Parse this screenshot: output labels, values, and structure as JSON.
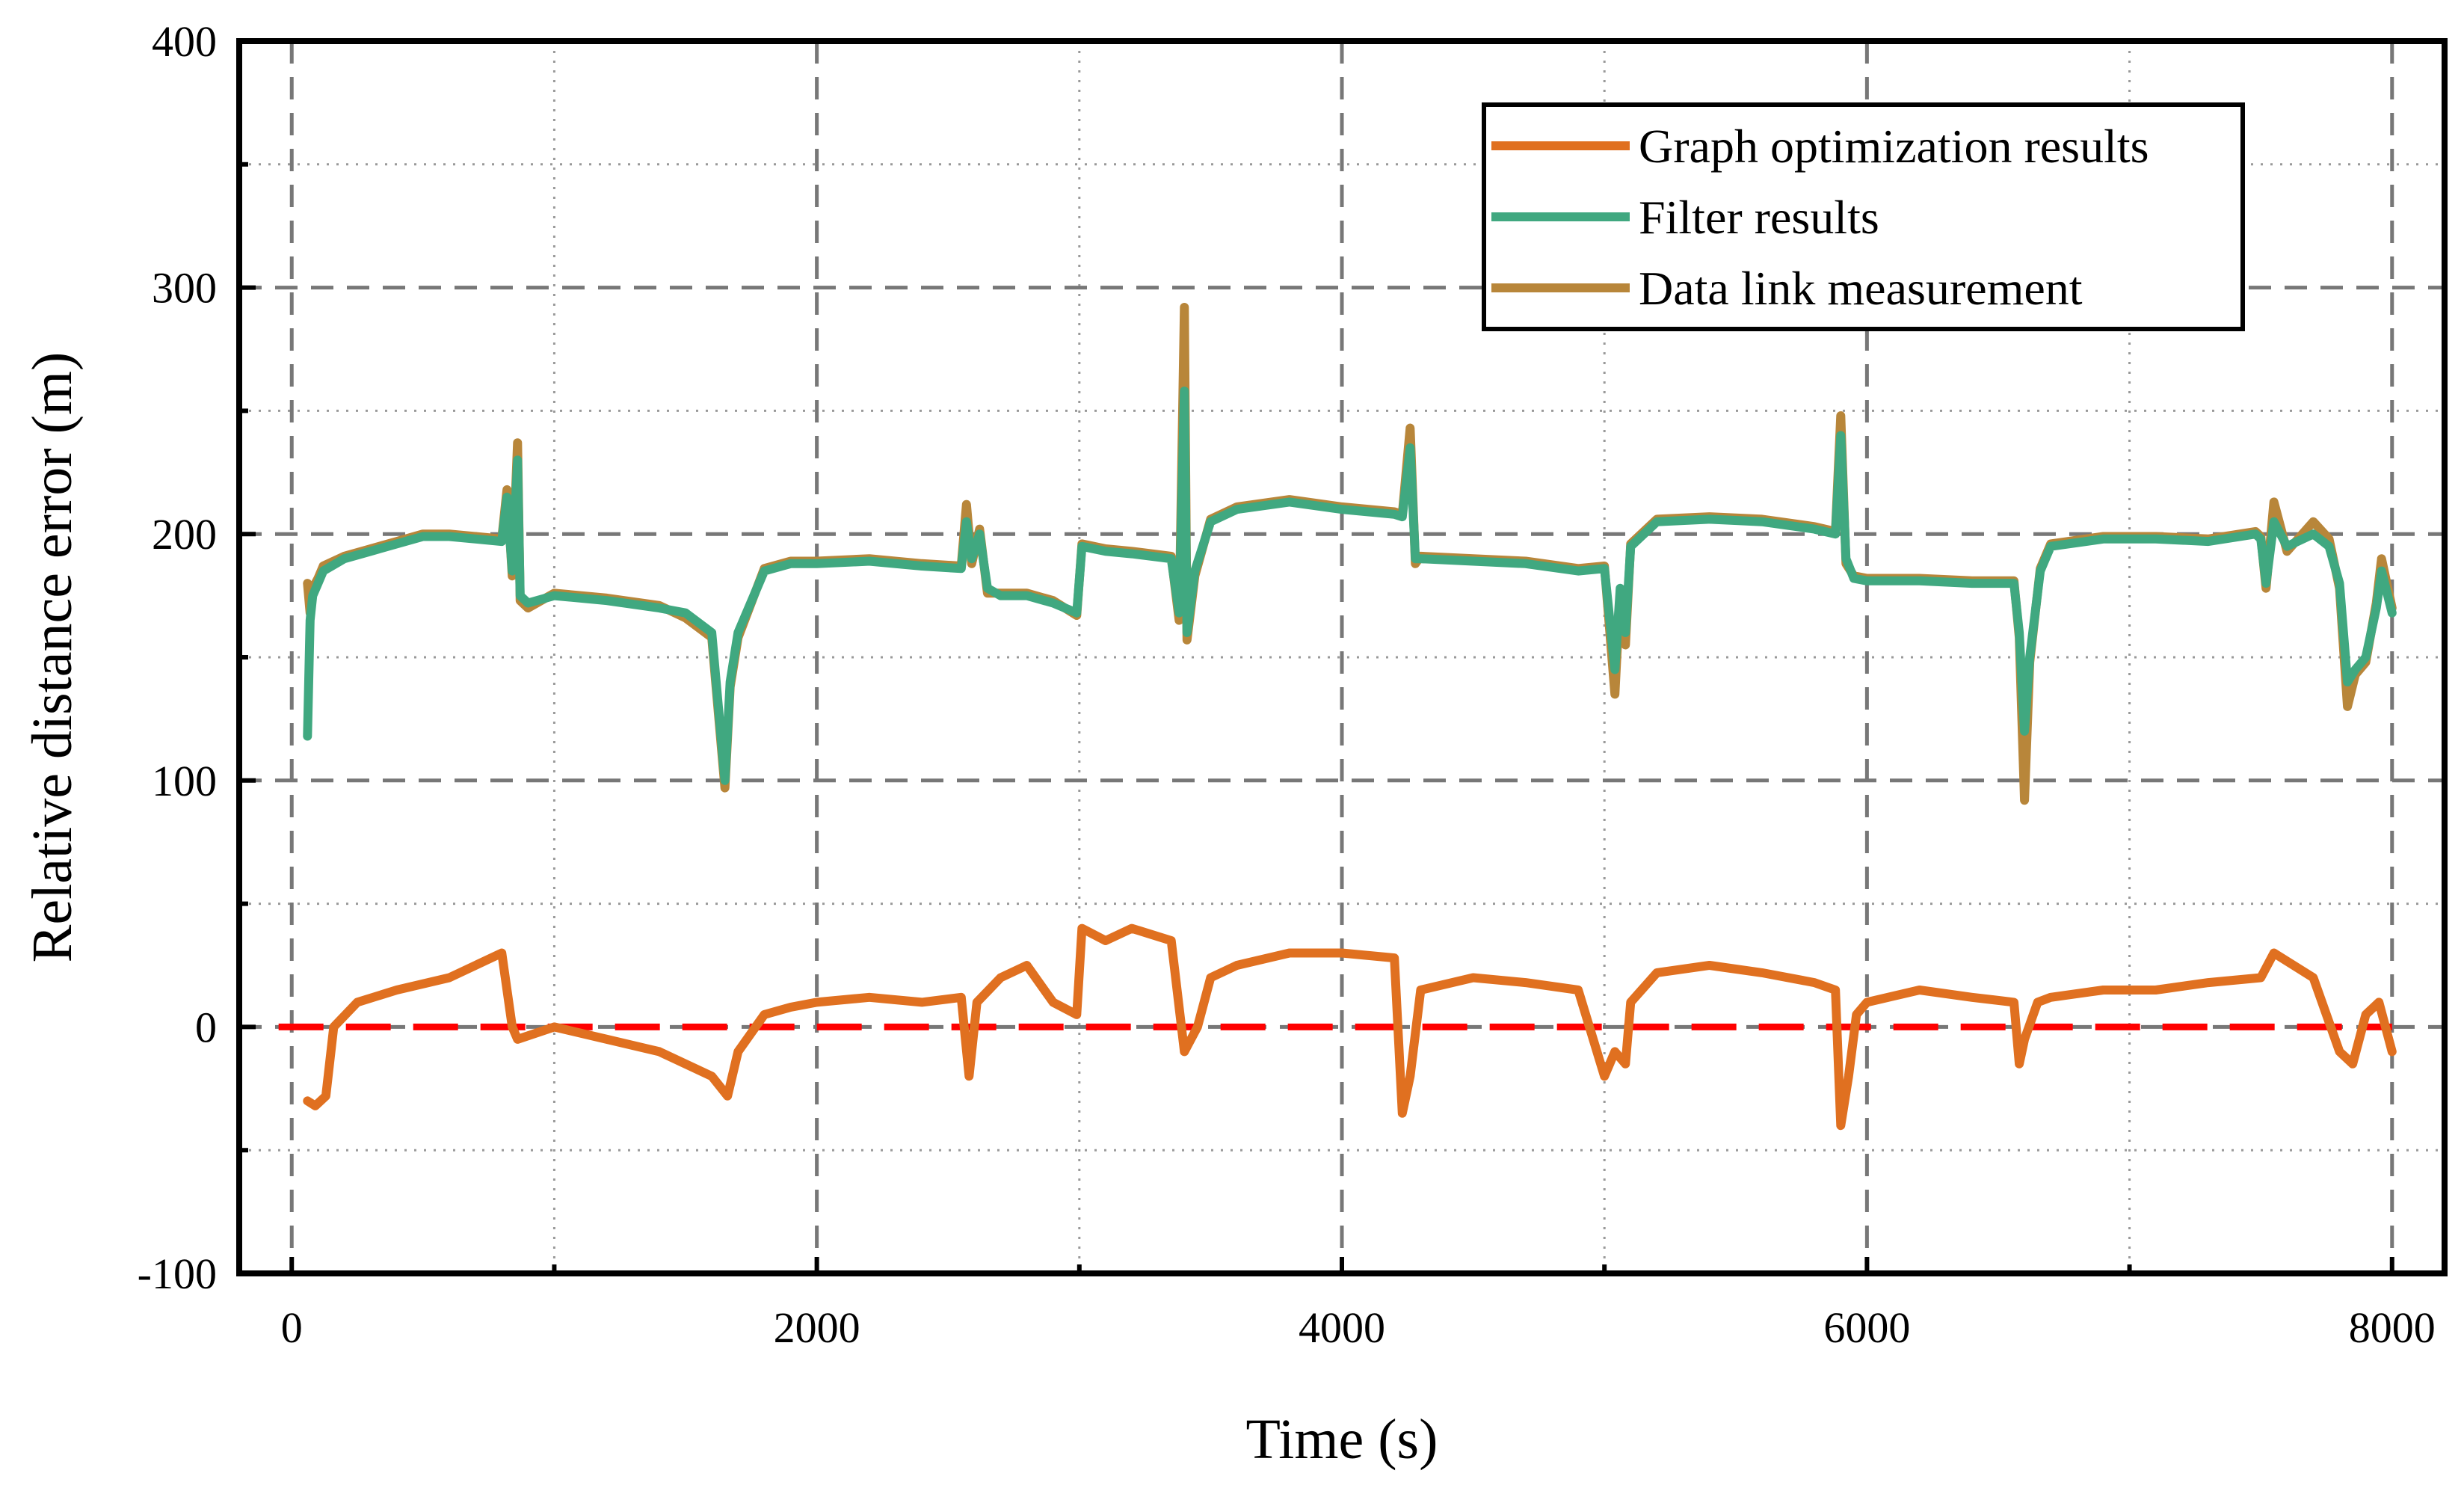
{
  "chart_data": {
    "type": "line",
    "title": "",
    "xlabel": "Time (s)",
    "ylabel": "Relative distance error (m)",
    "xlim": [
      -200,
      8200
    ],
    "ylim": [
      -100,
      400
    ],
    "xticks": [
      0,
      2000,
      4000,
      6000,
      8000
    ],
    "xtick_labels": [
      "0",
      "2000",
      "4000",
      "6000",
      "8000"
    ],
    "yticks": [
      -100,
      0,
      100,
      200,
      300,
      400
    ],
    "ytick_labels": [
      "-100",
      "0",
      "100",
      "200",
      "300",
      "400"
    ],
    "grid": true,
    "legend_position": "top-right",
    "reference_line": {
      "y": 0,
      "color": "#ff0000",
      "style": "dashed"
    },
    "series": [
      {
        "name": "Graph optimization results",
        "color": "#e07020",
        "x": [
          60,
          90,
          130,
          160,
          250,
          400,
          600,
          700,
          800,
          840,
          860,
          1000,
          1200,
          1400,
          1600,
          1660,
          1700,
          1800,
          1900,
          2000,
          2200,
          2400,
          2550,
          2580,
          2610,
          2700,
          2800,
          2900,
          2990,
          3010,
          3100,
          3200,
          3350,
          3400,
          3450,
          3500,
          3600,
          3800,
          4000,
          4200,
          4230,
          4260,
          4300,
          4500,
          4700,
          4900,
          5000,
          5040,
          5080,
          5100,
          5200,
          5400,
          5600,
          5800,
          5880,
          5900,
          5930,
          5960,
          6000,
          6200,
          6400,
          6560,
          6580,
          6600,
          6650,
          6700,
          6900,
          7100,
          7300,
          7500,
          7550,
          7700,
          7800,
          7850,
          7900,
          7950,
          8000
        ],
        "y": [
          -30,
          -32,
          -28,
          0,
          10,
          15,
          20,
          25,
          30,
          0,
          -5,
          0,
          -5,
          -10,
          -20,
          -28,
          -10,
          5,
          8,
          10,
          12,
          10,
          12,
          -20,
          10,
          20,
          25,
          10,
          5,
          40,
          35,
          40,
          35,
          -10,
          0,
          20,
          25,
          30,
          30,
          28,
          -35,
          -20,
          15,
          20,
          18,
          15,
          -20,
          -10,
          -15,
          10,
          22,
          25,
          22,
          18,
          15,
          -40,
          -20,
          5,
          10,
          15,
          12,
          10,
          -15,
          -5,
          10,
          12,
          15,
          15,
          18,
          20,
          30,
          20,
          -10,
          -15,
          5,
          10,
          -10
        ]
      },
      {
        "name": "Filter results",
        "color": "#40a880",
        "x": [
          60,
          70,
          80,
          100,
          120,
          200,
          300,
          400,
          500,
          600,
          700,
          800,
          820,
          840,
          860,
          870,
          900,
          1000,
          1200,
          1400,
          1500,
          1600,
          1650,
          1670,
          1700,
          1800,
          1900,
          2000,
          2200,
          2400,
          2550,
          2570,
          2590,
          2620,
          2650,
          2700,
          2800,
          2900,
          2990,
          3010,
          3100,
          3200,
          3350,
          3380,
          3400,
          3410,
          3440,
          3500,
          3600,
          3800,
          4000,
          4200,
          4230,
          4260,
          4280,
          4300,
          4500,
          4700,
          4900,
          5000,
          5040,
          5060,
          5080,
          5100,
          5200,
          5400,
          5600,
          5800,
          5880,
          5900,
          5920,
          5950,
          6000,
          6200,
          6400,
          6560,
          6580,
          6600,
          6620,
          6660,
          6700,
          6900,
          7100,
          7300,
          7480,
          7500,
          7520,
          7550,
          7600,
          7700,
          7760,
          7800,
          7830,
          7860,
          7900,
          7940,
          7960,
          8000
        ],
        "y": [
          118,
          165,
          175,
          180,
          185,
          190,
          193,
          196,
          199,
          199,
          198,
          197,
          215,
          185,
          230,
          175,
          172,
          175,
          173,
          170,
          168,
          160,
          100,
          140,
          160,
          185,
          188,
          188,
          189,
          187,
          186,
          205,
          190,
          200,
          178,
          175,
          175,
          172,
          168,
          195,
          193,
          192,
          190,
          168,
          258,
          160,
          185,
          205,
          210,
          213,
          210,
          208,
          207,
          235,
          190,
          190,
          189,
          188,
          185,
          186,
          145,
          178,
          160,
          195,
          205,
          206,
          205,
          202,
          200,
          240,
          190,
          182,
          181,
          181,
          180,
          180,
          160,
          120,
          150,
          185,
          195,
          198,
          198,
          197,
          200,
          198,
          180,
          205,
          195,
          200,
          195,
          180,
          140,
          145,
          150,
          170,
          185,
          168
        ]
      },
      {
        "name": "Data link measurement",
        "color": "#b8863a",
        "x": [
          60,
          70,
          80,
          100,
          120,
          200,
          300,
          400,
          500,
          600,
          700,
          800,
          820,
          840,
          860,
          870,
          900,
          1000,
          1200,
          1400,
          1500,
          1600,
          1650,
          1670,
          1700,
          1800,
          1900,
          2000,
          2200,
          2400,
          2550,
          2570,
          2590,
          2620,
          2650,
          2700,
          2800,
          2900,
          2990,
          3010,
          3100,
          3200,
          3350,
          3380,
          3400,
          3410,
          3440,
          3500,
          3600,
          3800,
          4000,
          4200,
          4230,
          4260,
          4280,
          4300,
          4500,
          4700,
          4900,
          5000,
          5040,
          5060,
          5080,
          5100,
          5200,
          5400,
          5600,
          5800,
          5880,
          5900,
          5920,
          5950,
          6000,
          6200,
          6400,
          6560,
          6580,
          6600,
          6620,
          6660,
          6700,
          6900,
          7100,
          7300,
          7480,
          7500,
          7520,
          7550,
          7600,
          7700,
          7760,
          7800,
          7830,
          7860,
          7900,
          7940,
          7960,
          8000
        ],
        "y": [
          180,
          168,
          178,
          182,
          187,
          191,
          194,
          197,
          200,
          200,
          199,
          198,
          218,
          183,
          237,
          173,
          170,
          176,
          174,
          171,
          166,
          158,
          97,
          138,
          158,
          186,
          189,
          189,
          190,
          188,
          187,
          212,
          188,
          202,
          176,
          176,
          176,
          173,
          167,
          196,
          194,
          193,
          191,
          165,
          292,
          157,
          183,
          206,
          211,
          214,
          211,
          209,
          208,
          243,
          188,
          191,
          190,
          189,
          186,
          187,
          135,
          177,
          155,
          196,
          206,
          207,
          206,
          203,
          201,
          248,
          188,
          183,
          182,
          182,
          181,
          181,
          158,
          92,
          148,
          186,
          196,
          199,
          199,
          198,
          201,
          199,
          178,
          213,
          193,
          205,
          198,
          178,
          130,
          143,
          148,
          172,
          190,
          170
        ]
      }
    ]
  }
}
